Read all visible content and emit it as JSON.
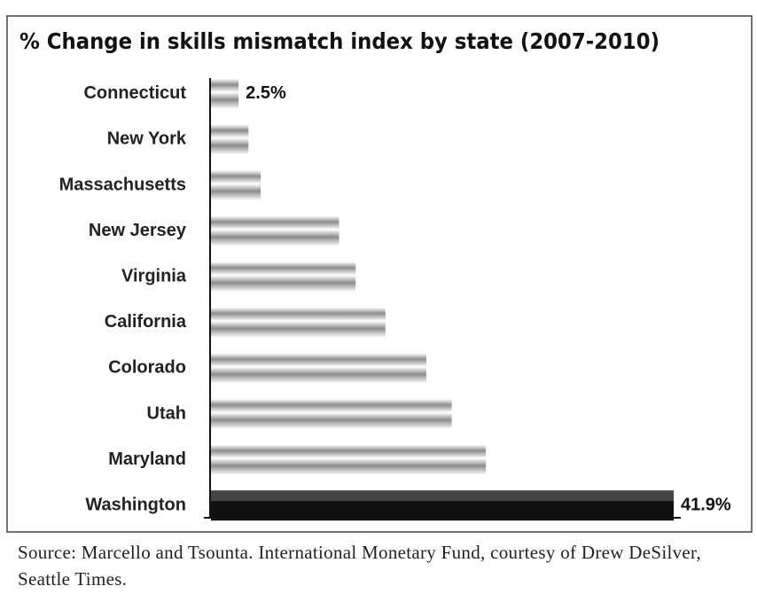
{
  "chart_data": {
    "type": "bar",
    "orientation": "horizontal",
    "title": "% Change in skills mismatch index by state (2007-2010)",
    "categories": [
      "Connecticut",
      "New York",
      "Massachusetts",
      "New Jersey",
      "Virginia",
      "California",
      "Colorado",
      "Utah",
      "Maryland",
      "Washington"
    ],
    "values": [
      2.5,
      3.4,
      4.5,
      11.6,
      13.1,
      15.8,
      19.5,
      21.8,
      24.9,
      41.9
    ],
    "value_labels": [
      "2.5%",
      null,
      null,
      null,
      null,
      null,
      null,
      null,
      null,
      "41.9%"
    ],
    "colors": [
      "#8c8c8c",
      "#8c8c8c",
      "#8c8c8c",
      "#8c8c8c",
      "#8c8c8c",
      "#8c8c8c",
      "#8c8c8c",
      "#8c8c8c",
      "#8c8c8c",
      "#111111"
    ]
  },
  "source": "Source: Marcello and Tsounta. International Monetary Fund, courtesy of Drew DeSilver, Seattle Times."
}
